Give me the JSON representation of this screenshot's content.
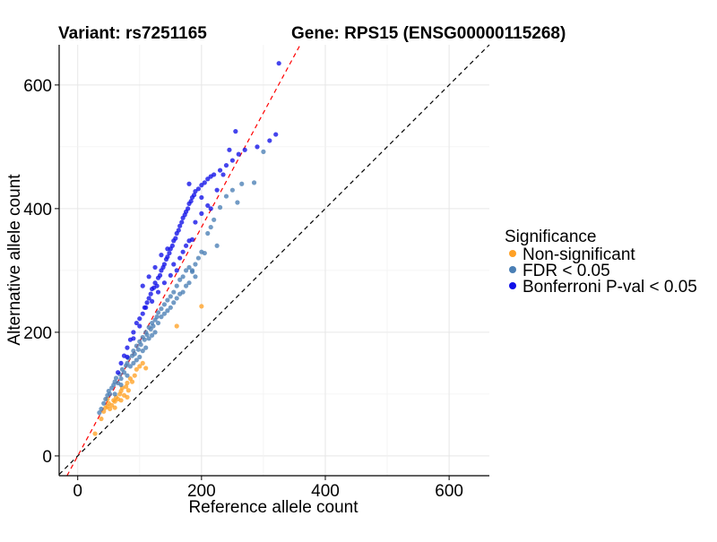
{
  "chart_data": {
    "type": "scatter",
    "title_left": "Variant: rs7251165",
    "title_right": "Gene: RPS15 (ENSG00000115268)",
    "xlabel": "Reference allele count",
    "ylabel": "Alternative allele count",
    "xlim": [
      -30,
      665
    ],
    "ylim": [
      -32,
      665
    ],
    "xticks": [
      0,
      200,
      400,
      600
    ],
    "yticks": [
      0,
      200,
      400,
      600
    ],
    "grid": true,
    "legend": {
      "title": "Significance",
      "position": "right",
      "entries": [
        {
          "label": "Non-significant",
          "color": "#FFA125"
        },
        {
          "label": "FDR < 0.05",
          "color": "#4A7FB5"
        },
        {
          "label": "Bonferroni P-val < 0.05",
          "color": "#1010E8"
        }
      ]
    },
    "reference_lines": [
      {
        "slope": 1.0,
        "intercept": 0,
        "color": "#000000",
        "style": "dashed"
      },
      {
        "slope": 1.85,
        "intercept": 0,
        "color": "#FF0000",
        "style": "dashed"
      }
    ],
    "series": [
      {
        "name": "Non-significant",
        "color": "#FFA125",
        "points": [
          [
            28,
            36
          ],
          [
            38,
            60
          ],
          [
            42,
            72
          ],
          [
            45,
            78
          ],
          [
            48,
            80
          ],
          [
            50,
            85
          ],
          [
            52,
            76
          ],
          [
            55,
            82
          ],
          [
            58,
            90
          ],
          [
            60,
            88
          ],
          [
            62,
            95
          ],
          [
            65,
            92
          ],
          [
            68,
            100
          ],
          [
            70,
            105
          ],
          [
            72,
            110
          ],
          [
            75,
            98
          ],
          [
            78,
            112
          ],
          [
            80,
            118
          ],
          [
            82,
            106
          ],
          [
            85,
            125
          ],
          [
            88,
            120
          ],
          [
            92,
            130
          ],
          [
            95,
            140
          ],
          [
            100,
            145
          ],
          [
            105,
            150
          ],
          [
            110,
            142
          ],
          [
            80,
            95
          ],
          [
            60,
            78
          ],
          [
            48,
            92
          ],
          [
            70,
            90
          ],
          [
            160,
            210
          ],
          [
            200,
            242
          ]
        ]
      },
      {
        "name": "FDR < 0.05",
        "color": "#4A7FB5",
        "points": [
          [
            35,
            70
          ],
          [
            38,
            76
          ],
          [
            42,
            85
          ],
          [
            45,
            92
          ],
          [
            48,
            98
          ],
          [
            50,
            105
          ],
          [
            52,
            100
          ],
          [
            55,
            110
          ],
          [
            58,
            115
          ],
          [
            60,
            120
          ],
          [
            62,
            126
          ],
          [
            65,
            118
          ],
          [
            68,
            132
          ],
          [
            70,
            125
          ],
          [
            72,
            140
          ],
          [
            75,
            135
          ],
          [
            78,
            146
          ],
          [
            80,
            150
          ],
          [
            82,
            158
          ],
          [
            85,
            145
          ],
          [
            88,
            162
          ],
          [
            90,
            170
          ],
          [
            92,
            165
          ],
          [
            95,
            178
          ],
          [
            98,
            172
          ],
          [
            100,
            185
          ],
          [
            102,
            180
          ],
          [
            105,
            192
          ],
          [
            108,
            188
          ],
          [
            110,
            200
          ],
          [
            112,
            196
          ],
          [
            115,
            208
          ],
          [
            118,
            205
          ],
          [
            120,
            215
          ],
          [
            122,
            210
          ],
          [
            125,
            220
          ],
          [
            128,
            225
          ],
          [
            130,
            232
          ],
          [
            135,
            238
          ],
          [
            140,
            245
          ],
          [
            145,
            252
          ],
          [
            150,
            258
          ],
          [
            155,
            265
          ],
          [
            160,
            275
          ],
          [
            165,
            285
          ],
          [
            170,
            290
          ],
          [
            175,
            300
          ],
          [
            180,
            305
          ],
          [
            185,
            298
          ],
          [
            190,
            310
          ],
          [
            195,
            320
          ],
          [
            200,
            330
          ],
          [
            205,
            328
          ],
          [
            210,
            360
          ],
          [
            215,
            370
          ],
          [
            220,
            382
          ],
          [
            225,
            340
          ],
          [
            230,
            402
          ],
          [
            240,
            420
          ],
          [
            250,
            430
          ],
          [
            258,
            410
          ],
          [
            265,
            440
          ],
          [
            285,
            442
          ],
          [
            300,
            492
          ],
          [
            100,
            160
          ],
          [
            105,
            170
          ],
          [
            95,
            155
          ],
          [
            115,
            190
          ],
          [
            125,
            200
          ],
          [
            130,
            215
          ],
          [
            140,
            230
          ],
          [
            150,
            240
          ],
          [
            160,
            255
          ],
          [
            170,
            265
          ],
          [
            180,
            280
          ],
          [
            190,
            290
          ],
          [
            60,
            100
          ],
          [
            70,
            115
          ],
          [
            80,
            130
          ],
          [
            90,
            150
          ],
          [
            110,
            175
          ],
          [
            120,
            195
          ],
          [
            135,
            225
          ],
          [
            145,
            235
          ],
          [
            155,
            248
          ],
          [
            165,
            262
          ],
          [
            175,
            275
          ],
          [
            185,
            300
          ]
        ]
      },
      {
        "name": "Bonferroni P-val < 0.05",
        "color": "#1010E8",
        "points": [
          [
            65,
            135
          ],
          [
            70,
            150
          ],
          [
            75,
            162
          ],
          [
            80,
            175
          ],
          [
            85,
            188
          ],
          [
            90,
            200
          ],
          [
            95,
            215
          ],
          [
            100,
            222
          ],
          [
            105,
            230
          ],
          [
            108,
            240
          ],
          [
            112,
            248
          ],
          [
            115,
            255
          ],
          [
            118,
            262
          ],
          [
            120,
            270
          ],
          [
            123,
            272
          ],
          [
            125,
            280
          ],
          [
            128,
            275
          ],
          [
            130,
            288
          ],
          [
            133,
            292
          ],
          [
            135,
            300
          ],
          [
            138,
            305
          ],
          [
            140,
            310
          ],
          [
            143,
            318
          ],
          [
            145,
            322
          ],
          [
            148,
            328
          ],
          [
            150,
            335
          ],
          [
            153,
            340
          ],
          [
            155,
            348
          ],
          [
            158,
            352
          ],
          [
            160,
            360
          ],
          [
            163,
            365
          ],
          [
            165,
            372
          ],
          [
            168,
            378
          ],
          [
            170,
            385
          ],
          [
            173,
            390
          ],
          [
            175,
            395
          ],
          [
            178,
            400
          ],
          [
            180,
            408
          ],
          [
            183,
            412
          ],
          [
            185,
            418
          ],
          [
            188,
            422
          ],
          [
            190,
            428
          ],
          [
            195,
            432
          ],
          [
            200,
            438
          ],
          [
            205,
            442
          ],
          [
            210,
            448
          ],
          [
            215,
            452
          ],
          [
            220,
            455
          ],
          [
            230,
            462
          ],
          [
            240,
            470
          ],
          [
            250,
            478
          ],
          [
            260,
            488
          ],
          [
            270,
            495
          ],
          [
            290,
            500
          ],
          [
            310,
            510
          ],
          [
            320,
            520
          ],
          [
            325,
            635
          ],
          [
            245,
            495
          ],
          [
            255,
            525
          ],
          [
            105,
            275
          ],
          [
            115,
            290
          ],
          [
            125,
            305
          ],
          [
            135,
            325
          ],
          [
            145,
            335
          ],
          [
            150,
            292
          ],
          [
            160,
            300
          ],
          [
            170,
            330
          ],
          [
            180,
            348
          ],
          [
            190,
            378
          ],
          [
            200,
            392
          ],
          [
            210,
            405
          ],
          [
            215,
            400
          ],
          [
            185,
            350
          ],
          [
            175,
            340
          ],
          [
            165,
            320
          ],
          [
            155,
            310
          ],
          [
            140,
            280
          ],
          [
            130,
            265
          ],
          [
            120,
            250
          ],
          [
            110,
            240
          ],
          [
            100,
            210
          ],
          [
            90,
            190
          ],
          [
            80,
            160
          ],
          [
            180,
            440
          ],
          [
            200,
            418
          ],
          [
            235,
            455
          ],
          [
            225,
            430
          ]
        ]
      }
    ]
  }
}
